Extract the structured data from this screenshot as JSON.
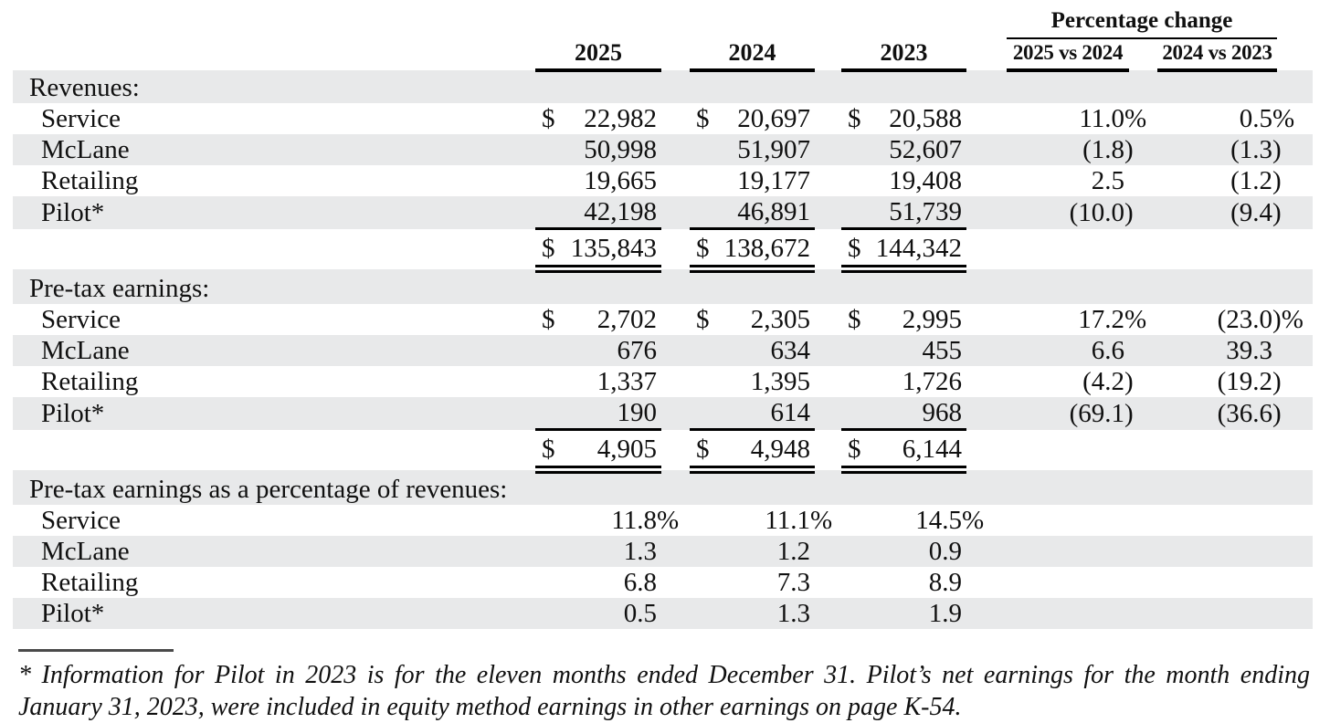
{
  "colors": {
    "stripe_gray": "#e8e9ea",
    "rule_black": "#000000"
  },
  "table": {
    "pct_group_label": "Percentage change",
    "year_headers": [
      "2025",
      "2024",
      "2023"
    ],
    "pct_headers": [
      "2025 vs 2024",
      "2024 vs 2023"
    ],
    "sections": [
      {
        "label": "Revenues:",
        "rows": [
          {
            "label": "Service",
            "dollar": true,
            "v": [
              "22,982",
              "20,697",
              "20,588"
            ],
            "p": [
              "11.0%",
              "0.5%"
            ]
          },
          {
            "label": "McLane",
            "dollar": false,
            "v": [
              "50,998",
              "51,907",
              "52,607"
            ],
            "p": [
              "(1.8)",
              "(1.3)"
            ]
          },
          {
            "label": "Retailing",
            "dollar": false,
            "v": [
              "19,665",
              "19,177",
              "19,408"
            ],
            "p": [
              "2.5",
              "(1.2)"
            ]
          },
          {
            "label": "Pilot*",
            "dollar": false,
            "rule": true,
            "v": [
              "42,198",
              "46,891",
              "51,739"
            ],
            "p": [
              "(10.0)",
              "(9.4)"
            ]
          }
        ],
        "total": {
          "dollar": true,
          "v": [
            "135,843",
            "138,672",
            "144,342"
          ]
        }
      },
      {
        "label": "Pre-tax earnings:",
        "rows": [
          {
            "label": "Service",
            "dollar": true,
            "v": [
              "2,702",
              "2,305",
              "2,995"
            ],
            "p": [
              "17.2%",
              "(23.0)%"
            ]
          },
          {
            "label": "McLane",
            "dollar": false,
            "v": [
              "676",
              "634",
              "455"
            ],
            "p": [
              "6.6",
              "39.3"
            ]
          },
          {
            "label": "Retailing",
            "dollar": false,
            "v": [
              "1,337",
              "1,395",
              "1,726"
            ],
            "p": [
              "(4.2)",
              "(19.2)"
            ]
          },
          {
            "label": "Pilot*",
            "dollar": false,
            "rule": true,
            "v": [
              "190",
              "614",
              "968"
            ],
            "p": [
              "(69.1)",
              "(36.6)"
            ]
          }
        ],
        "total": {
          "dollar": true,
          "v": [
            "4,905",
            "4,948",
            "6,144"
          ]
        }
      },
      {
        "label": "Pre-tax earnings as a percentage of revenues:",
        "rows": [
          {
            "label": "Service",
            "dollar": false,
            "v": [
              "11.8%",
              "11.1%",
              "14.5%"
            ],
            "p": [
              "",
              ""
            ]
          },
          {
            "label": "McLane",
            "dollar": false,
            "v": [
              "1.3",
              "1.2",
              "0.9"
            ],
            "p": [
              "",
              ""
            ]
          },
          {
            "label": "Retailing",
            "dollar": false,
            "v": [
              "6.8",
              "7.3",
              "8.9"
            ],
            "p": [
              "",
              ""
            ]
          },
          {
            "label": "Pilot*",
            "dollar": false,
            "v": [
              "0.5",
              "1.3",
              "1.9"
            ],
            "p": [
              "",
              ""
            ]
          }
        ]
      }
    ]
  },
  "footnote": {
    "text": "* Information for Pilot in 2023 is for the eleven months ended December 31. Pilot’s net earnings for the month ending January 31, 2023, were included in equity method earnings in other earnings on page K-54."
  }
}
